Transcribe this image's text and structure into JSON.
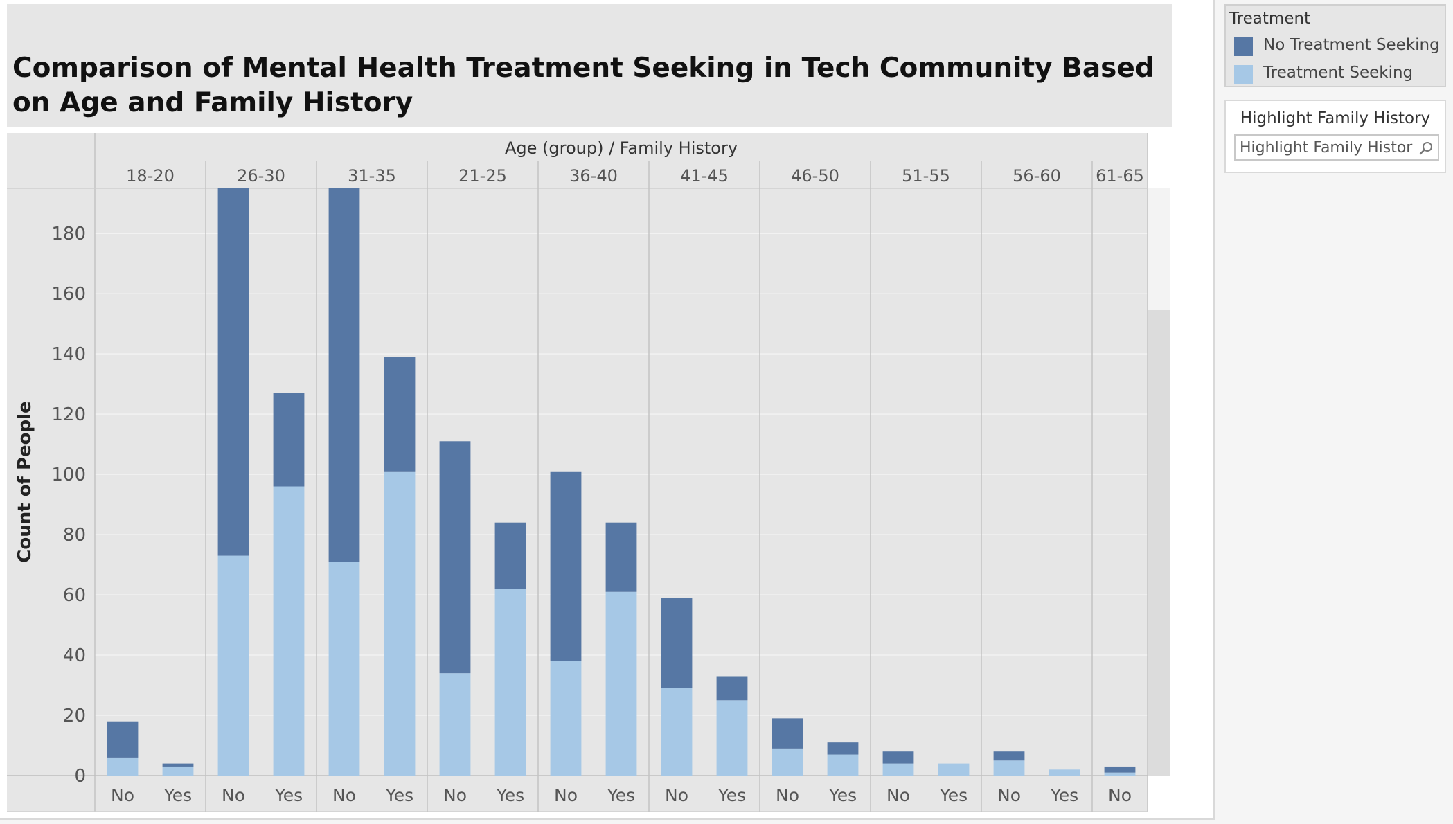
{
  "title": "Comparison of Mental Health Treatment Seeking in Tech Community Based on Age and Family History",
  "chart_data": {
    "type": "bar",
    "stacked": true,
    "header_label": "Age (group) / Family History",
    "ylabel": "Count of People",
    "ylim": [
      0,
      195
    ],
    "yticks": [
      0,
      20,
      40,
      60,
      80,
      100,
      120,
      140,
      160,
      180
    ],
    "grid": true,
    "legend_position": "right",
    "groups": [
      {
        "label": "18-20",
        "subs": [
          "No",
          "Yes"
        ]
      },
      {
        "label": "26-30",
        "subs": [
          "No",
          "Yes"
        ]
      },
      {
        "label": "31-35",
        "subs": [
          "No",
          "Yes"
        ]
      },
      {
        "label": "21-25",
        "subs": [
          "No",
          "Yes"
        ]
      },
      {
        "label": "36-40",
        "subs": [
          "No",
          "Yes"
        ]
      },
      {
        "label": "41-45",
        "subs": [
          "No",
          "Yes"
        ]
      },
      {
        "label": "46-50",
        "subs": [
          "No",
          "Yes"
        ]
      },
      {
        "label": "51-55",
        "subs": [
          "No",
          "Yes"
        ]
      },
      {
        "label": "56-60",
        "subs": [
          "No",
          "Yes"
        ]
      },
      {
        "label": "61-65",
        "subs": [
          "No"
        ]
      }
    ],
    "series": [
      {
        "name": "Treatment Seeking",
        "color": "#a6c8e6",
        "values": [
          6,
          3,
          73,
          96,
          71,
          101,
          34,
          62,
          38,
          61,
          29,
          25,
          9,
          7,
          4,
          4,
          5,
          2,
          1
        ]
      },
      {
        "name": "No Treatment Seeking",
        "color": "#5677a4",
        "values": [
          12,
          1,
          122,
          31,
          124,
          38,
          77,
          22,
          63,
          23,
          30,
          8,
          10,
          4,
          4,
          0,
          3,
          0,
          2
        ]
      }
    ]
  },
  "legend": {
    "title": "Treatment",
    "items": [
      {
        "label": "No Treatment Seeking",
        "color": "#5677a4"
      },
      {
        "label": "Treatment Seeking",
        "color": "#a6c8e6"
      }
    ]
  },
  "highlight": {
    "title": "Highlight Family History",
    "placeholder": "Highlight Family History"
  }
}
